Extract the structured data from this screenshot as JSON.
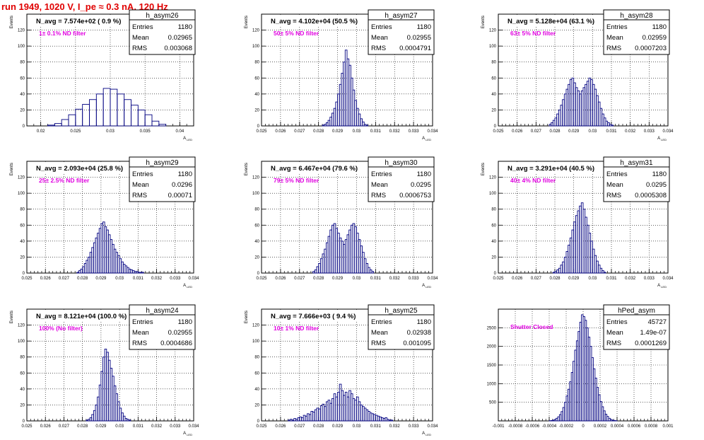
{
  "canvas_title": "run 1949,  1020 V, I_pe ≈ 0.3 nA, 120 Hz",
  "colors": {
    "title": "#e00000",
    "annotation": "#e000e0",
    "histogram": "#000080",
    "frame": "#000000"
  },
  "stats_labels": {
    "entries": "Entries",
    "mean": "Mean",
    "rms": "RMS"
  },
  "chart_data": [
    {
      "type": "bar",
      "name": "h_asym26",
      "ylabel": "Events",
      "xlabel": "A_LED",
      "grid": true,
      "header": "N_avg = 7.574e+02 ( 0.9 %)",
      "annotation": "1± 0.1% ND filter",
      "stats": {
        "entries": "1180",
        "mean": "0.02965",
        "rms": "0.003068"
      },
      "xlim": [
        0.018,
        0.042
      ],
      "ylim": [
        0,
        140
      ],
      "xticks": [
        "0.02",
        "0.025",
        "0.03",
        "0.035",
        "0.04"
      ],
      "xtick_values": [
        0.02,
        0.025,
        0.03,
        0.035,
        0.04
      ],
      "yticks": [
        "0",
        "20",
        "40",
        "60",
        "80",
        "100",
        "120"
      ],
      "ytick_values": [
        0,
        20,
        40,
        60,
        80,
        100,
        120
      ],
      "x": [
        0.0215,
        0.0225,
        0.0235,
        0.0245,
        0.0255,
        0.0265,
        0.0275,
        0.0285,
        0.0295,
        0.0305,
        0.0315,
        0.0325,
        0.0335,
        0.0345,
        0.0355,
        0.0365,
        0.0375
      ],
      "values": [
        1,
        3,
        8,
        14,
        21,
        27,
        33,
        40,
        47,
        46,
        40,
        33,
        26,
        20,
        14,
        6,
        2
      ]
    },
    {
      "type": "bar",
      "name": "h_asym27",
      "ylabel": "Events",
      "xlabel": "A_LED",
      "grid": true,
      "header": "N_avg = 4.102e+04 (50.5 %)",
      "annotation": "50± 5% ND filter",
      "stats": {
        "entries": "1180",
        "mean": "0.02955",
        "rms": "0.0004791"
      },
      "xlim": [
        0.025,
        0.034
      ],
      "ylim": [
        0,
        140
      ],
      "xticks": [
        "0.025",
        "0.026",
        "0.027",
        "0.028",
        "0.029",
        "0.03",
        "0.031",
        "0.032",
        "0.033",
        "0.034"
      ],
      "xtick_values": [
        0.025,
        0.026,
        0.027,
        0.028,
        0.029,
        0.03,
        0.031,
        0.032,
        0.033,
        0.034
      ],
      "yticks": [
        "0",
        "20",
        "40",
        "60",
        "80",
        "100",
        "120"
      ],
      "ytick_values": [
        0,
        20,
        40,
        60,
        80,
        100,
        120
      ],
      "x": [
        0.02825,
        0.02835,
        0.02845,
        0.02855,
        0.02865,
        0.02875,
        0.02885,
        0.02895,
        0.02905,
        0.02915,
        0.02925,
        0.02935,
        0.02945,
        0.02955,
        0.02965,
        0.02975,
        0.02985,
        0.02995,
        0.03005,
        0.03015,
        0.03025,
        0.03035,
        0.03045,
        0.03055
      ],
      "values": [
        1,
        2,
        4,
        7,
        11,
        16,
        22,
        30,
        40,
        52,
        66,
        80,
        95,
        84,
        76,
        60,
        45,
        32,
        22,
        15,
        9,
        5,
        2,
        1
      ]
    },
    {
      "type": "bar",
      "name": "h_asym28",
      "ylabel": "Events",
      "xlabel": "A_LED",
      "grid": true,
      "header": "N_avg = 5.128e+04 (63.1 %)",
      "annotation": "63± 5% ND filter",
      "stats": {
        "entries": "1180",
        "mean": "0.02959",
        "rms": "0.0007203"
      },
      "xlim": [
        0.025,
        0.034
      ],
      "ylim": [
        0,
        140
      ],
      "xticks": [
        "0.025",
        "0.026",
        "0.027",
        "0.028",
        "0.029",
        "0.03",
        "0.031",
        "0.032",
        "0.033",
        "0.034"
      ],
      "xtick_values": [
        0.025,
        0.026,
        0.027,
        0.028,
        0.029,
        0.03,
        0.031,
        0.032,
        0.033,
        0.034
      ],
      "yticks": [
        "0",
        "20",
        "40",
        "60",
        "80",
        "100",
        "120"
      ],
      "ytick_values": [
        0,
        20,
        40,
        60,
        80,
        100,
        120
      ],
      "x": [
        0.02775,
        0.02785,
        0.02795,
        0.02805,
        0.02815,
        0.02825,
        0.02835,
        0.02845,
        0.02855,
        0.02865,
        0.02875,
        0.02885,
        0.02895,
        0.02905,
        0.02915,
        0.02925,
        0.02935,
        0.02945,
        0.02955,
        0.02965,
        0.02975,
        0.02985,
        0.02995,
        0.03005,
        0.03015,
        0.03025,
        0.03035,
        0.03045,
        0.03055,
        0.03065,
        0.03075,
        0.03085,
        0.03095,
        0.03105
      ],
      "values": [
        2,
        4,
        7,
        10,
        15,
        20,
        26,
        33,
        40,
        46,
        52,
        58,
        60,
        54,
        48,
        44,
        40,
        44,
        48,
        52,
        56,
        60,
        58,
        52,
        46,
        38,
        30,
        22,
        15,
        10,
        6,
        4,
        2,
        1
      ]
    },
    {
      "type": "bar",
      "name": "h_asym29",
      "ylabel": "Events",
      "xlabel": "A_LED",
      "grid": true,
      "header": "N_avg = 2.093e+04 (25.8 %)",
      "annotation": "25± 2.5% ND filter",
      "stats": {
        "entries": "1180",
        "mean": "0.0296",
        "rms": "0.00071"
      },
      "xlim": [
        0.025,
        0.034
      ],
      "ylim": [
        0,
        140
      ],
      "xticks": [
        "0.025",
        "0.026",
        "0.027",
        "0.028",
        "0.029",
        "0.03",
        "0.031",
        "0.032",
        "0.033",
        "0.034"
      ],
      "xtick_values": [
        0.025,
        0.026,
        0.027,
        0.028,
        0.029,
        0.03,
        0.031,
        0.032,
        0.033,
        0.034
      ],
      "yticks": [
        "0",
        "20",
        "40",
        "60",
        "80",
        "100",
        "120"
      ],
      "ytick_values": [
        0,
        20,
        40,
        60,
        80,
        100,
        120
      ],
      "x": [
        0.02775,
        0.02785,
        0.02795,
        0.02805,
        0.02815,
        0.02825,
        0.02835,
        0.02845,
        0.02855,
        0.02865,
        0.02875,
        0.02885,
        0.02895,
        0.02905,
        0.02915,
        0.02925,
        0.02935,
        0.02945,
        0.02955,
        0.02965,
        0.02975,
        0.02985,
        0.02995,
        0.03005,
        0.03015,
        0.03025,
        0.03035,
        0.03045,
        0.03055,
        0.03065,
        0.03075,
        0.03085,
        0.03095,
        0.03105,
        0.03115,
        0.03125
      ],
      "values": [
        1,
        3,
        5,
        8,
        12,
        16,
        20,
        26,
        32,
        38,
        44,
        50,
        56,
        62,
        64,
        58,
        54,
        48,
        42,
        36,
        30,
        26,
        22,
        18,
        14,
        11,
        9,
        7,
        5,
        4,
        3,
        2,
        2,
        1,
        1,
        1
      ]
    },
    {
      "type": "bar",
      "name": "h_asym30",
      "ylabel": "Events",
      "xlabel": "A_LED",
      "grid": true,
      "header": "N_avg = 6.467e+04 (79.6 %)",
      "annotation": "79± 5% ND filter",
      "stats": {
        "entries": "1180",
        "mean": "0.0295",
        "rms": "0.0006753"
      },
      "xlim": [
        0.025,
        0.034
      ],
      "ylim": [
        0,
        140
      ],
      "xticks": [
        "0.025",
        "0.026",
        "0.027",
        "0.028",
        "0.029",
        "0.03",
        "0.031",
        "0.032",
        "0.033",
        "0.034"
      ],
      "xtick_values": [
        0.025,
        0.026,
        0.027,
        0.028,
        0.029,
        0.03,
        0.031,
        0.032,
        0.033,
        0.034
      ],
      "yticks": [
        "0",
        "20",
        "40",
        "60",
        "80",
        "100",
        "120"
      ],
      "ytick_values": [
        0,
        20,
        40,
        60,
        80,
        100,
        120
      ],
      "x": [
        0.02775,
        0.02785,
        0.02795,
        0.02805,
        0.02815,
        0.02825,
        0.02835,
        0.02845,
        0.02855,
        0.02865,
        0.02875,
        0.02885,
        0.02895,
        0.02905,
        0.02915,
        0.02925,
        0.02935,
        0.02945,
        0.02955,
        0.02965,
        0.02975,
        0.02985,
        0.02995,
        0.03005,
        0.03015,
        0.03025,
        0.03035,
        0.03045,
        0.03055,
        0.03065,
        0.03075,
        0.03085
      ],
      "values": [
        2,
        4,
        8,
        12,
        18,
        24,
        30,
        38,
        46,
        54,
        60,
        62,
        56,
        50,
        44,
        40,
        36,
        42,
        48,
        54,
        60,
        62,
        58,
        50,
        42,
        34,
        26,
        18,
        12,
        7,
        4,
        2
      ]
    },
    {
      "type": "bar",
      "name": "h_asym31",
      "ylabel": "Events",
      "xlabel": "A_LED",
      "grid": true,
      "header": "N_avg = 3.291e+04 (40.5 %)",
      "annotation": "40± 4% ND filter",
      "stats": {
        "entries": "1180",
        "mean": "0.0295",
        "rms": "0.0005308"
      },
      "xlim": [
        0.025,
        0.034
      ],
      "ylim": [
        0,
        140
      ],
      "xticks": [
        "0.025",
        "0.026",
        "0.027",
        "0.028",
        "0.029",
        "0.03",
        "0.031",
        "0.032",
        "0.033",
        "0.034"
      ],
      "xtick_values": [
        0.025,
        0.026,
        0.027,
        0.028,
        0.029,
        0.03,
        0.031,
        0.032,
        0.033,
        0.034
      ],
      "yticks": [
        "0",
        "20",
        "40",
        "60",
        "80",
        "100",
        "120"
      ],
      "ytick_values": [
        0,
        20,
        40,
        60,
        80,
        100,
        120
      ],
      "x": [
        0.02795,
        0.02805,
        0.02815,
        0.02825,
        0.02835,
        0.02845,
        0.02855,
        0.02865,
        0.02875,
        0.02885,
        0.02895,
        0.02905,
        0.02915,
        0.02925,
        0.02935,
        0.02945,
        0.02955,
        0.02965,
        0.02975,
        0.02985,
        0.02995,
        0.03005,
        0.03015,
        0.03025,
        0.03035,
        0.03045,
        0.03055,
        0.03065
      ],
      "values": [
        1,
        2,
        4,
        6,
        10,
        14,
        20,
        27,
        35,
        44,
        54,
        64,
        72,
        78,
        84,
        88,
        80,
        70,
        60,
        50,
        40,
        30,
        22,
        15,
        10,
        6,
        3,
        1
      ]
    },
    {
      "type": "bar",
      "name": "h_asym24",
      "ylabel": "Events",
      "xlabel": "A_LED",
      "grid": true,
      "header": "N_avg = 8.121e+04 (100.0 %)",
      "annotation": "100% (No filter)",
      "stats": {
        "entries": "1180",
        "mean": "0.02955",
        "rms": "0.0004686"
      },
      "xlim": [
        0.025,
        0.034
      ],
      "ylim": [
        0,
        140
      ],
      "xticks": [
        "0.025",
        "0.026",
        "0.027",
        "0.028",
        "0.029",
        "0.03",
        "0.031",
        "0.032",
        "0.033",
        "0.034"
      ],
      "xtick_values": [
        0.025,
        0.026,
        0.027,
        0.028,
        0.029,
        0.03,
        0.031,
        0.032,
        0.033,
        0.034
      ],
      "yticks": [
        "0",
        "20",
        "40",
        "60",
        "80",
        "100",
        "120"
      ],
      "ytick_values": [
        0,
        20,
        40,
        60,
        80,
        100,
        120
      ],
      "x": [
        0.02825,
        0.02835,
        0.02845,
        0.02855,
        0.02865,
        0.02875,
        0.02885,
        0.02895,
        0.02905,
        0.02915,
        0.02925,
        0.02935,
        0.02945,
        0.02955,
        0.02965,
        0.02975,
        0.02985,
        0.02995,
        0.03005,
        0.03015,
        0.03025,
        0.03035,
        0.03045,
        0.03055
      ],
      "values": [
        1,
        2,
        4,
        8,
        13,
        20,
        30,
        45,
        62,
        80,
        90,
        86,
        76,
        66,
        56,
        44,
        34,
        24,
        16,
        10,
        6,
        3,
        2,
        1
      ]
    },
    {
      "type": "bar",
      "name": "h_asym25",
      "ylabel": "Events",
      "xlabel": "A_LED",
      "grid": true,
      "header": "N_avg = 7.666e+03 ( 9.4 %)",
      "annotation": "10± 1% ND filter",
      "stats": {
        "entries": "1180",
        "mean": "0.02938",
        "rms": "0.001095"
      },
      "xlim": [
        0.025,
        0.034
      ],
      "ylim": [
        0,
        140
      ],
      "xticks": [
        "0.025",
        "0.026",
        "0.027",
        "0.028",
        "0.029",
        "0.03",
        "0.031",
        "0.032",
        "0.033",
        "0.034"
      ],
      "xtick_values": [
        0.025,
        0.026,
        0.027,
        0.028,
        0.029,
        0.03,
        0.031,
        0.032,
        0.033,
        0.034
      ],
      "yticks": [
        "0",
        "20",
        "40",
        "60",
        "80",
        "100",
        "120"
      ],
      "ytick_values": [
        0,
        20,
        40,
        60,
        80,
        100,
        120
      ],
      "x": [
        0.02645,
        0.02655,
        0.02665,
        0.02675,
        0.02685,
        0.02695,
        0.02705,
        0.02715,
        0.02725,
        0.02735,
        0.02745,
        0.02755,
        0.02765,
        0.02775,
        0.02785,
        0.02795,
        0.02805,
        0.02815,
        0.02825,
        0.02835,
        0.02845,
        0.02855,
        0.02865,
        0.02875,
        0.02885,
        0.02895,
        0.02905,
        0.02915,
        0.02925,
        0.02935,
        0.02945,
        0.02955,
        0.02965,
        0.02975,
        0.02985,
        0.02995,
        0.03005,
        0.03015,
        0.03025,
        0.03035,
        0.03045,
        0.03055,
        0.03065,
        0.03075,
        0.03085,
        0.03095,
        0.03105,
        0.03115,
        0.03125,
        0.03135,
        0.03145,
        0.03155,
        0.03165,
        0.03175,
        0.03185
      ],
      "values": [
        1,
        2,
        1,
        3,
        2,
        4,
        5,
        4,
        7,
        6,
        9,
        8,
        12,
        11,
        14,
        16,
        15,
        19,
        21,
        18,
        24,
        26,
        22,
        28,
        34,
        30,
        36,
        46,
        38,
        32,
        36,
        30,
        38,
        34,
        28,
        26,
        30,
        24,
        20,
        18,
        16,
        14,
        12,
        10,
        9,
        8,
        7,
        6,
        5,
        4,
        3,
        4,
        2,
        1,
        1
      ]
    },
    {
      "type": "bar",
      "name": "hPed_asym",
      "ylabel": "",
      "xlabel": "",
      "grid": true,
      "header": "",
      "annotation": "Shutter Closed",
      "stats": {
        "entries": "45727",
        "mean": "1.49e-07",
        "rms": "0.0001269"
      },
      "xlim": [
        -0.001,
        0.001
      ],
      "ylim": [
        0,
        3000
      ],
      "xticks": [
        "-0.001",
        "-0.0008",
        "-0.0006",
        "-0.0004",
        "-0.0002",
        "0",
        "0.0002",
        "0.0004",
        "0.0006",
        "0.0008",
        "0.001"
      ],
      "xtick_values": [
        -0.001,
        -0.0008,
        -0.0006,
        -0.0004,
        -0.0002,
        0,
        0.0002,
        0.0004,
        0.0006,
        0.0008,
        0.001
      ],
      "yticks": [
        "500",
        "1000",
        "1500",
        "2000",
        "2500"
      ],
      "ytick_values": [
        500,
        1000,
        1500,
        2000,
        2500
      ],
      "x": [
        -0.00039,
        -0.00037,
        -0.00035,
        -0.00033,
        -0.00031,
        -0.00029,
        -0.00027,
        -0.00025,
        -0.00023,
        -0.00021,
        -0.00019,
        -0.00017,
        -0.00015,
        -0.00013,
        -0.00011,
        -9e-05,
        -7e-05,
        -5e-05,
        -3e-05,
        -1e-05,
        1e-05,
        3e-05,
        5e-05,
        7e-05,
        9e-05,
        0.00011,
        0.00013,
        0.00015,
        0.00017,
        0.00019,
        0.00021,
        0.00023,
        0.00025,
        0.00027,
        0.00029,
        0.00031,
        0.00033,
        0.00035,
        0.00037,
        0.00039
      ],
      "values": [
        5,
        10,
        20,
        40,
        70,
        110,
        170,
        250,
        360,
        500,
        670,
        850,
        1050,
        1300,
        1600,
        1900,
        2150,
        2400,
        2650,
        2850,
        2800,
        2700,
        2500,
        2250,
        2000,
        1700,
        1400,
        1150,
        900,
        700,
        520,
        380,
        270,
        180,
        120,
        70,
        40,
        20,
        10,
        5
      ]
    }
  ]
}
